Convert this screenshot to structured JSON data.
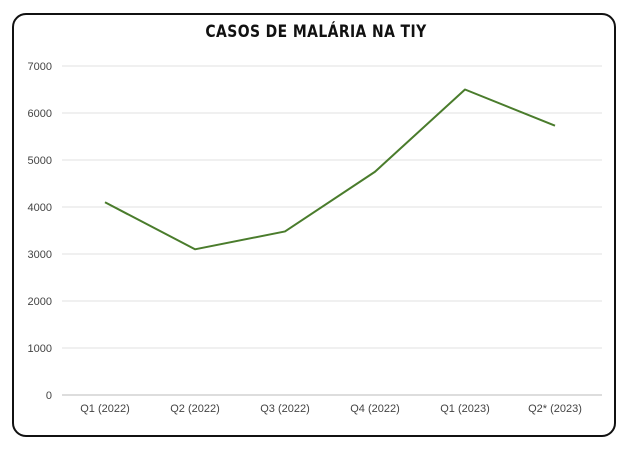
{
  "chart_data": {
    "type": "line",
    "title": "CASOS DE MALÁRIA NA TIY",
    "categories": [
      "Q1 (2022)",
      "Q2 (2022)",
      "Q3 (2022)",
      "Q4 (2022)",
      "Q1 (2023)",
      "Q2* (2023)"
    ],
    "series": [
      {
        "values": [
          4100,
          3100,
          3480,
          4750,
          6500,
          5730
        ]
      }
    ],
    "ylim": [
      0,
      7000
    ],
    "yticks": [
      0,
      1000,
      2000,
      3000,
      4000,
      5000,
      6000,
      7000
    ],
    "grid": true,
    "legend": "none",
    "line_color": "#4a7c2c",
    "xlabel": "",
    "ylabel": ""
  }
}
